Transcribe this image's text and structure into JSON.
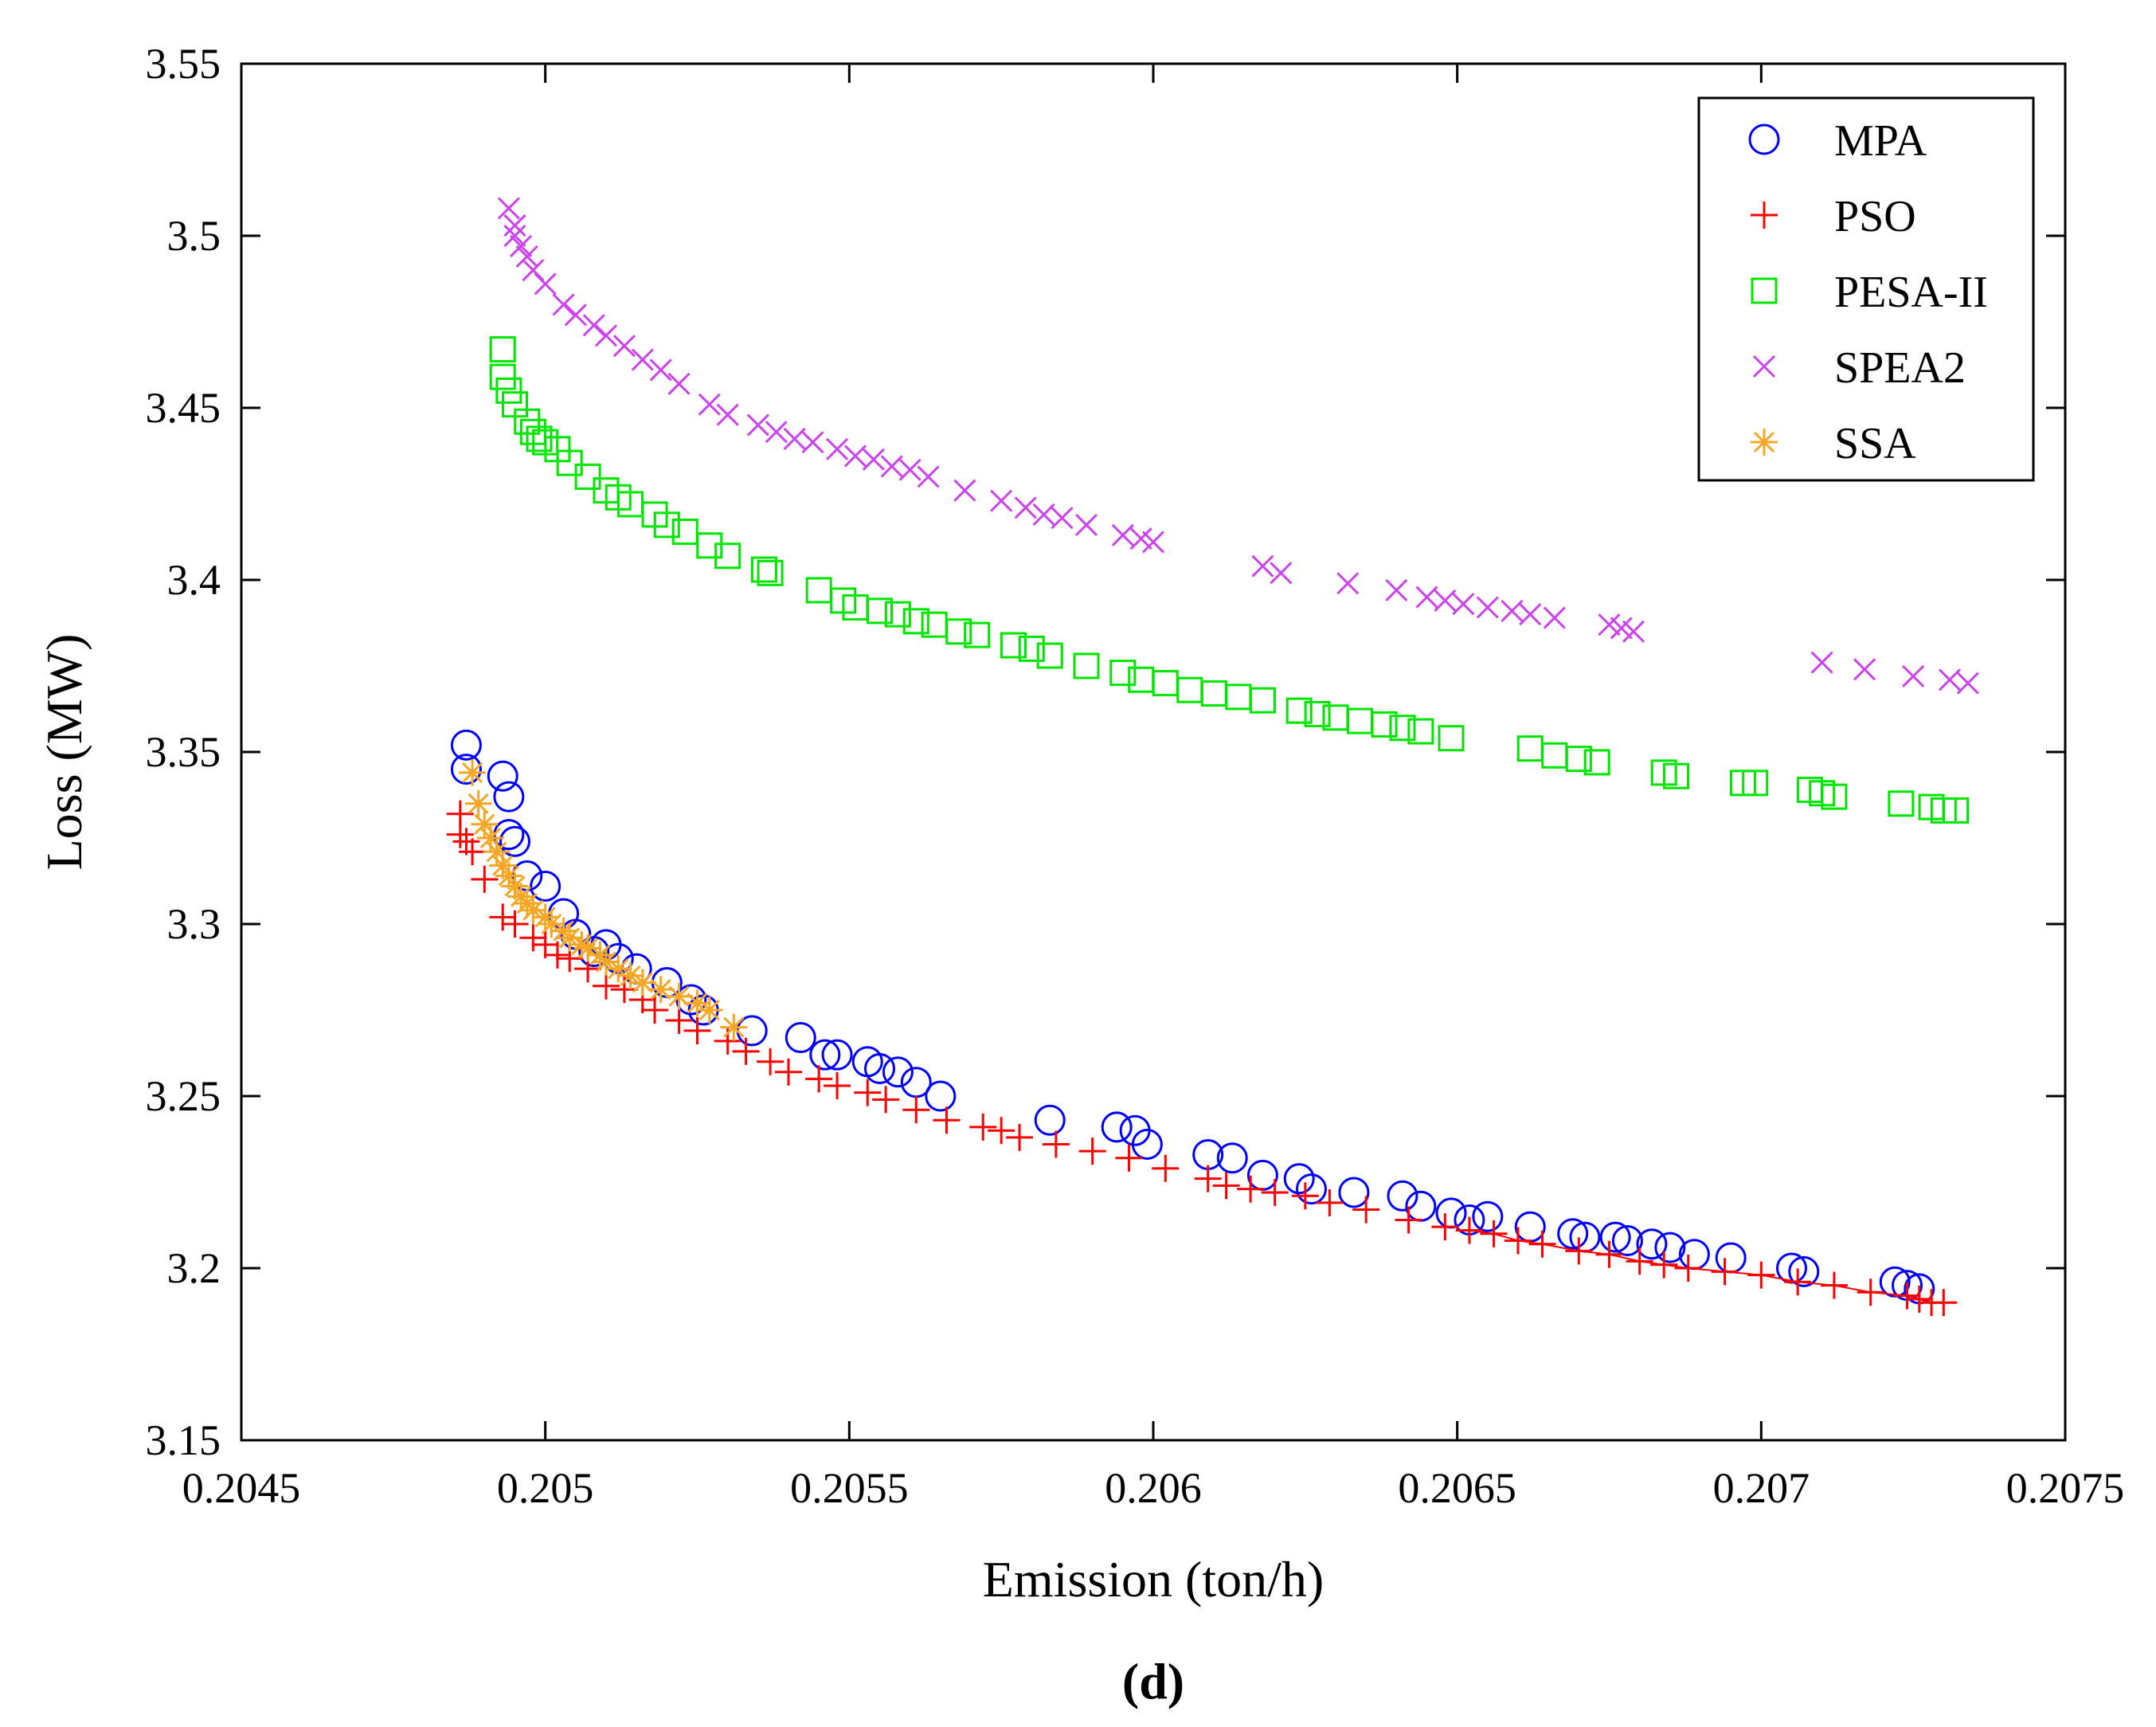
{
  "chart_data": {
    "type": "scatter",
    "title": "",
    "xlabel": "Emission (ton/h)",
    "ylabel": "Loss (MW)",
    "xlim": [
      0.2045,
      0.2075
    ],
    "ylim": [
      3.15,
      3.55
    ],
    "x_ticks": [
      0.2045,
      0.205,
      0.2055,
      0.206,
      0.2065,
      0.207,
      0.2075
    ],
    "x_tick_labels": [
      "0.2045",
      "0.205",
      "0.2055",
      "0.206",
      "0.2065",
      "0.207",
      "0.2075"
    ],
    "y_ticks": [
      3.15,
      3.2,
      3.25,
      3.3,
      3.35,
      3.4,
      3.45,
      3.5,
      3.55
    ],
    "y_tick_labels": [
      "3.15",
      "3.2",
      "3.25",
      "3.3",
      "3.35",
      "3.4",
      "3.45",
      "3.5",
      "3.55"
    ],
    "grid": false,
    "legend_position": "top-right",
    "caption": "(d)",
    "series": [
      {
        "name": "MPA",
        "marker": "circle",
        "color": "#0000ff",
        "points": [
          [
            0.20487,
            3.352
          ],
          [
            0.20487,
            3.345
          ],
          [
            0.20493,
            3.343
          ],
          [
            0.20494,
            3.337
          ],
          [
            0.20494,
            3.326
          ],
          [
            0.20495,
            3.324
          ],
          [
            0.20497,
            3.314
          ],
          [
            0.205,
            3.311
          ],
          [
            0.20503,
            3.303
          ],
          [
            0.20505,
            3.297
          ],
          [
            0.20508,
            3.292
          ],
          [
            0.2051,
            3.294
          ],
          [
            0.20512,
            3.29
          ],
          [
            0.20515,
            3.287
          ],
          [
            0.2052,
            3.283
          ],
          [
            0.20524,
            3.278
          ],
          [
            0.20526,
            3.275
          ],
          [
            0.20534,
            3.269
          ],
          [
            0.20542,
            3.267
          ],
          [
            0.20546,
            3.262
          ],
          [
            0.20548,
            3.262
          ],
          [
            0.20553,
            3.26
          ],
          [
            0.20555,
            3.258
          ],
          [
            0.20558,
            3.257
          ],
          [
            0.20561,
            3.254
          ],
          [
            0.20565,
            3.25
          ],
          [
            0.20583,
            3.243
          ],
          [
            0.20594,
            3.241
          ],
          [
            0.20597,
            3.24
          ],
          [
            0.20599,
            3.236
          ],
          [
            0.20609,
            3.233
          ],
          [
            0.20613,
            3.232
          ],
          [
            0.20618,
            3.227
          ],
          [
            0.20624,
            3.226
          ],
          [
            0.20626,
            3.223
          ],
          [
            0.20633,
            3.222
          ],
          [
            0.20641,
            3.221
          ],
          [
            0.20644,
            3.218
          ],
          [
            0.20649,
            3.216
          ],
          [
            0.20652,
            3.214
          ],
          [
            0.20655,
            3.215
          ],
          [
            0.20662,
            3.212
          ],
          [
            0.20669,
            3.21
          ],
          [
            0.20671,
            3.209
          ],
          [
            0.20676,
            3.209
          ],
          [
            0.20678,
            3.208
          ],
          [
            0.20682,
            3.207
          ],
          [
            0.20685,
            3.206
          ],
          [
            0.20689,
            3.204
          ],
          [
            0.20695,
            3.203
          ],
          [
            0.20705,
            3.2
          ],
          [
            0.20707,
            3.199
          ],
          [
            0.20722,
            3.196
          ],
          [
            0.20724,
            3.195
          ],
          [
            0.20726,
            3.194
          ]
        ]
      },
      {
        "name": "PSO",
        "marker": "plus",
        "color": "#ff0000",
        "points": [
          [
            0.20486,
            3.332
          ],
          [
            0.20486,
            3.326
          ],
          [
            0.20487,
            3.324
          ],
          [
            0.20488,
            3.321
          ],
          [
            0.2049,
            3.313
          ],
          [
            0.20493,
            3.302
          ],
          [
            0.20495,
            3.3
          ],
          [
            0.20498,
            3.296
          ],
          [
            0.205,
            3.294
          ],
          [
            0.20502,
            3.291
          ],
          [
            0.20504,
            3.29
          ],
          [
            0.20507,
            3.287
          ],
          [
            0.2051,
            3.282
          ],
          [
            0.20513,
            3.281
          ],
          [
            0.20516,
            3.278
          ],
          [
            0.20518,
            3.275
          ],
          [
            0.20522,
            3.272
          ],
          [
            0.20525,
            3.269
          ],
          [
            0.2053,
            3.266
          ],
          [
            0.20533,
            3.263
          ],
          [
            0.20537,
            3.26
          ],
          [
            0.2054,
            3.257
          ],
          [
            0.20545,
            3.255
          ],
          [
            0.20548,
            3.253
          ],
          [
            0.20553,
            3.251
          ],
          [
            0.20556,
            3.249
          ],
          [
            0.20561,
            3.246
          ],
          [
            0.20566,
            3.243
          ],
          [
            0.20572,
            3.241
          ],
          [
            0.20575,
            3.24
          ],
          [
            0.20578,
            3.238
          ],
          [
            0.20584,
            3.236
          ],
          [
            0.2059,
            3.234
          ],
          [
            0.20596,
            3.232
          ],
          [
            0.20602,
            3.229
          ],
          [
            0.20609,
            3.226
          ],
          [
            0.20612,
            3.224
          ],
          [
            0.20616,
            3.223
          ],
          [
            0.2062,
            3.222
          ],
          [
            0.20625,
            3.221
          ],
          [
            0.20629,
            3.219
          ],
          [
            0.20635,
            3.217
          ],
          [
            0.20642,
            3.214
          ],
          [
            0.20648,
            3.212
          ],
          [
            0.20652,
            3.211
          ],
          [
            0.20656,
            3.21
          ],
          [
            0.2066,
            3.208
          ],
          [
            0.20664,
            3.207
          ],
          [
            0.2067,
            3.205
          ],
          [
            0.20675,
            3.204
          ],
          [
            0.2068,
            3.202
          ],
          [
            0.20684,
            3.201
          ],
          [
            0.20688,
            3.2
          ],
          [
            0.20694,
            3.199
          ],
          [
            0.207,
            3.198
          ],
          [
            0.20706,
            3.196
          ],
          [
            0.20712,
            3.195
          ],
          [
            0.20718,
            3.193
          ],
          [
            0.20724,
            3.192
          ],
          [
            0.20726,
            3.191
          ],
          [
            0.20728,
            3.19
          ],
          [
            0.2073,
            3.19
          ]
        ]
      },
      {
        "name": "PESA-II",
        "marker": "square",
        "color": "#00e600",
        "points": [
          [
            0.20493,
            3.467
          ],
          [
            0.20493,
            3.459
          ],
          [
            0.20494,
            3.455
          ],
          [
            0.20495,
            3.451
          ],
          [
            0.20497,
            3.446
          ],
          [
            0.20498,
            3.443
          ],
          [
            0.20499,
            3.441
          ],
          [
            0.205,
            3.44
          ],
          [
            0.20502,
            3.438
          ],
          [
            0.20504,
            3.434
          ],
          [
            0.20507,
            3.43
          ],
          [
            0.2051,
            3.426
          ],
          [
            0.20512,
            3.424
          ],
          [
            0.20514,
            3.422
          ],
          [
            0.20518,
            3.419
          ],
          [
            0.2052,
            3.416
          ],
          [
            0.20523,
            3.414
          ],
          [
            0.20527,
            3.41
          ],
          [
            0.2053,
            3.407
          ],
          [
            0.20536,
            3.403
          ],
          [
            0.20537,
            3.402
          ],
          [
            0.20545,
            3.397
          ],
          [
            0.20549,
            3.394
          ],
          [
            0.20551,
            3.392
          ],
          [
            0.20555,
            3.391
          ],
          [
            0.20558,
            3.39
          ],
          [
            0.20561,
            3.388
          ],
          [
            0.20564,
            3.387
          ],
          [
            0.20568,
            3.385
          ],
          [
            0.20571,
            3.384
          ],
          [
            0.20577,
            3.381
          ],
          [
            0.2058,
            3.38
          ],
          [
            0.20583,
            3.378
          ],
          [
            0.20589,
            3.375
          ],
          [
            0.20595,
            3.373
          ],
          [
            0.20598,
            3.371
          ],
          [
            0.20602,
            3.37
          ],
          [
            0.20606,
            3.368
          ],
          [
            0.2061,
            3.367
          ],
          [
            0.20614,
            3.366
          ],
          [
            0.20618,
            3.365
          ],
          [
            0.20624,
            3.362
          ],
          [
            0.20627,
            3.361
          ],
          [
            0.2063,
            3.36
          ],
          [
            0.20634,
            3.359
          ],
          [
            0.20638,
            3.358
          ],
          [
            0.20641,
            3.357
          ],
          [
            0.20644,
            3.356
          ],
          [
            0.20649,
            3.354
          ],
          [
            0.20662,
            3.351
          ],
          [
            0.20666,
            3.349
          ],
          [
            0.2067,
            3.348
          ],
          [
            0.20673,
            3.347
          ],
          [
            0.20684,
            3.344
          ],
          [
            0.20686,
            3.343
          ],
          [
            0.20697,
            3.341
          ],
          [
            0.20699,
            3.341
          ],
          [
            0.20708,
            3.339
          ],
          [
            0.2071,
            3.338
          ],
          [
            0.20712,
            3.337
          ],
          [
            0.20723,
            3.335
          ],
          [
            0.20728,
            3.334
          ],
          [
            0.2073,
            3.333
          ],
          [
            0.20732,
            3.333
          ]
        ]
      },
      {
        "name": "SPEA2",
        "marker": "x",
        "color": "#cc44ee",
        "points": [
          [
            0.20494,
            3.508
          ],
          [
            0.20495,
            3.503
          ],
          [
            0.20495,
            3.5
          ],
          [
            0.20496,
            3.497
          ],
          [
            0.20497,
            3.494
          ],
          [
            0.20498,
            3.49
          ],
          [
            0.205,
            3.486
          ],
          [
            0.20503,
            3.48
          ],
          [
            0.20505,
            3.477
          ],
          [
            0.20508,
            3.474
          ],
          [
            0.2051,
            3.471
          ],
          [
            0.20513,
            3.468
          ],
          [
            0.20516,
            3.464
          ],
          [
            0.20519,
            3.461
          ],
          [
            0.20522,
            3.457
          ],
          [
            0.20527,
            3.451
          ],
          [
            0.2053,
            3.448
          ],
          [
            0.20535,
            3.445
          ],
          [
            0.20538,
            3.443
          ],
          [
            0.20541,
            3.441
          ],
          [
            0.20544,
            3.44
          ],
          [
            0.20548,
            3.438
          ],
          [
            0.20551,
            3.436
          ],
          [
            0.20554,
            3.435
          ],
          [
            0.20557,
            3.433
          ],
          [
            0.2056,
            3.432
          ],
          [
            0.20563,
            3.43
          ],
          [
            0.20569,
            3.426
          ],
          [
            0.20575,
            3.423
          ],
          [
            0.20579,
            3.421
          ],
          [
            0.20582,
            3.419
          ],
          [
            0.20585,
            3.418
          ],
          [
            0.20589,
            3.416
          ],
          [
            0.20595,
            3.413
          ],
          [
            0.20598,
            3.412
          ],
          [
            0.206,
            3.411
          ],
          [
            0.20618,
            3.404
          ],
          [
            0.20621,
            3.402
          ],
          [
            0.20632,
            3.399
          ],
          [
            0.2064,
            3.397
          ],
          [
            0.20645,
            3.395
          ],
          [
            0.20648,
            3.394
          ],
          [
            0.20651,
            3.393
          ],
          [
            0.20655,
            3.392
          ],
          [
            0.20659,
            3.391
          ],
          [
            0.20662,
            3.39
          ],
          [
            0.20666,
            3.389
          ],
          [
            0.20675,
            3.387
          ],
          [
            0.20677,
            3.386
          ],
          [
            0.20679,
            3.385
          ],
          [
            0.2071,
            3.376
          ],
          [
            0.20717,
            3.374
          ],
          [
            0.20725,
            3.372
          ],
          [
            0.20731,
            3.371
          ],
          [
            0.20734,
            3.37
          ]
        ]
      },
      {
        "name": "SSA",
        "marker": "star",
        "color": "#f5a623",
        "points": [
          [
            0.20488,
            3.344
          ],
          [
            0.20489,
            3.335
          ],
          [
            0.2049,
            3.329
          ],
          [
            0.20491,
            3.325
          ],
          [
            0.20492,
            3.321
          ],
          [
            0.20493,
            3.317
          ],
          [
            0.20494,
            3.314
          ],
          [
            0.20495,
            3.311
          ],
          [
            0.20496,
            3.308
          ],
          [
            0.20497,
            3.306
          ],
          [
            0.20498,
            3.304
          ],
          [
            0.205,
            3.302
          ],
          [
            0.20501,
            3.3
          ],
          [
            0.20503,
            3.298
          ],
          [
            0.20504,
            3.296
          ],
          [
            0.20506,
            3.294
          ],
          [
            0.20507,
            3.293
          ],
          [
            0.20509,
            3.291
          ],
          [
            0.2051,
            3.289
          ],
          [
            0.20512,
            3.287
          ],
          [
            0.20514,
            3.285
          ],
          [
            0.20516,
            3.283
          ],
          [
            0.20519,
            3.281
          ],
          [
            0.20522,
            3.279
          ],
          [
            0.20525,
            3.277
          ],
          [
            0.20527,
            3.275
          ],
          [
            0.20531,
            3.27
          ]
        ]
      }
    ]
  }
}
